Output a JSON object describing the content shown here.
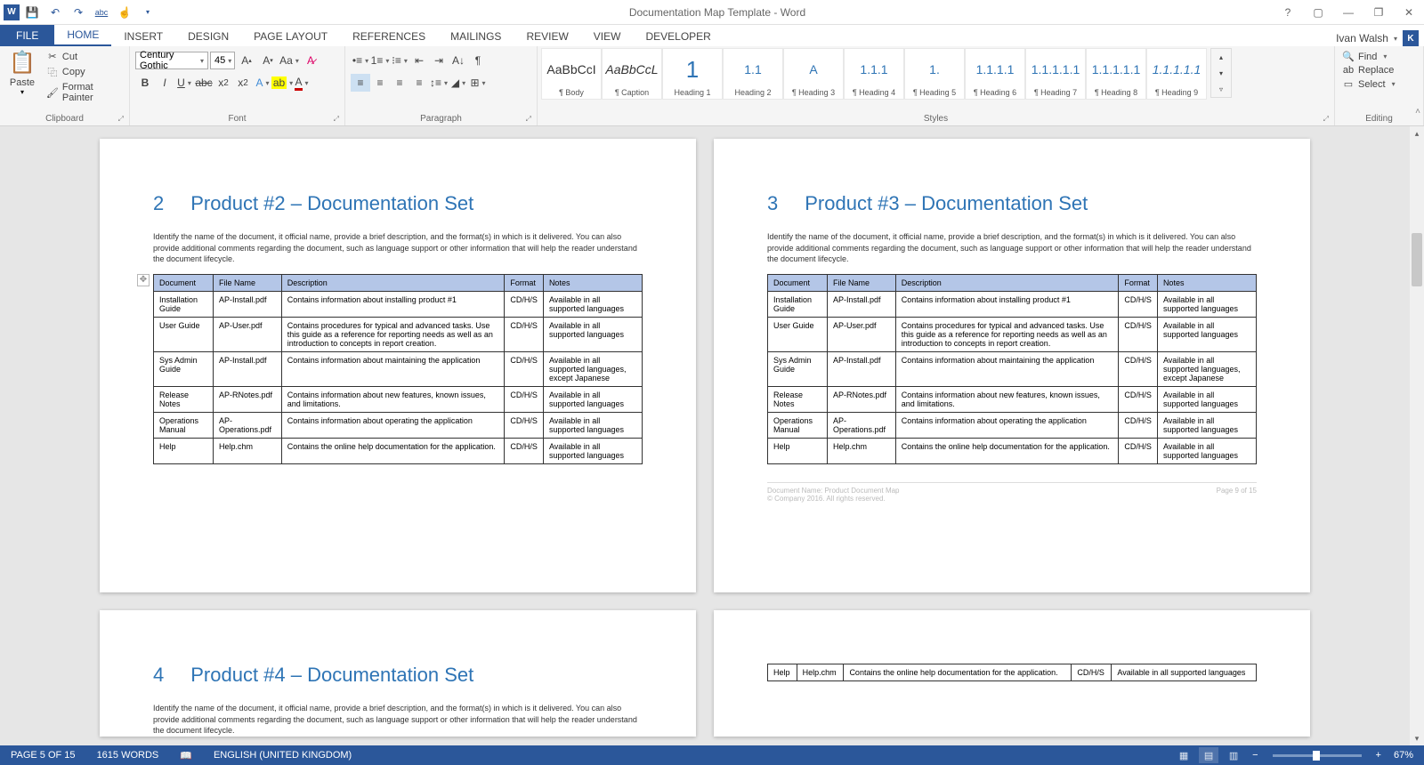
{
  "app": {
    "title": "Documentation Map Template - Word",
    "user": "Ivan Walsh",
    "user_initial": "K"
  },
  "qat": {
    "save": "💾",
    "undo": "↶",
    "redo": "↷",
    "spell": "abc",
    "touch": "☝"
  },
  "tabs": [
    "FILE",
    "HOME",
    "INSERT",
    "DESIGN",
    "PAGE LAYOUT",
    "REFERENCES",
    "MAILINGS",
    "REVIEW",
    "VIEW",
    "DEVELOPER"
  ],
  "clipboard": {
    "group": "Clipboard",
    "paste": "Paste",
    "cut": "Cut",
    "copy": "Copy",
    "painter": "Format Painter"
  },
  "font": {
    "group": "Font",
    "name": "Century Gothic",
    "size": "45"
  },
  "paragraph": {
    "group": "Paragraph"
  },
  "styles": {
    "group": "Styles",
    "items": [
      {
        "preview": "AaBbCcI",
        "name": "¶ Body",
        "heading": false
      },
      {
        "preview": "AaBbCcL",
        "name": "¶ Caption",
        "heading": false,
        "italic": true
      },
      {
        "preview": "1",
        "name": "Heading 1",
        "heading": true,
        "big": true
      },
      {
        "preview": "1.1",
        "name": "Heading 2",
        "heading": true
      },
      {
        "preview": "A",
        "name": "¶ Heading 3",
        "heading": true
      },
      {
        "preview": "1.1.1",
        "name": "¶ Heading 4",
        "heading": true
      },
      {
        "preview": "1.",
        "name": "¶ Heading 5",
        "heading": true
      },
      {
        "preview": "1.1.1.1",
        "name": "¶ Heading 6",
        "heading": true
      },
      {
        "preview": "1.1.1.1.1",
        "name": "¶ Heading 7",
        "heading": true
      },
      {
        "preview": "1.1.1.1.1",
        "name": "¶ Heading 8",
        "heading": true
      },
      {
        "preview": "1.1.1.1.1",
        "name": "¶ Heading 9",
        "heading": true,
        "italic": true
      }
    ]
  },
  "editing": {
    "group": "Editing",
    "find": "Find",
    "replace": "Replace",
    "select": "Select"
  },
  "document": {
    "intro": "Identify the name of the document, it official name, provide a brief description, and the format(s) in which is it delivered. You can also provide additional comments regarding the document, such as language support or other information that will help the reader understand the document lifecycle.",
    "columns": [
      "Document",
      "File Name",
      "Description",
      "Format",
      "Notes"
    ],
    "rows": [
      [
        "Installation Guide",
        "AP-Install.pdf",
        "Contains information about installing product #1",
        "CD/H/S",
        "Available in all supported languages"
      ],
      [
        "User Guide",
        "AP-User.pdf",
        "Contains procedures for typical and advanced tasks. Use this guide as a reference for reporting needs as well as an introduction to concepts in report creation.",
        "CD/H/S",
        "Available in all supported languages"
      ],
      [
        "Sys Admin Guide",
        "AP-Install.pdf",
        "Contains information about maintaining the application",
        "CD/H/S",
        "Available in all supported languages, except Japanese"
      ],
      [
        "Release Notes",
        "AP-RNotes.pdf",
        "Contains information about new features, known issues, and limitations.",
        "CD/H/S",
        "Available in all supported languages"
      ],
      [
        "Operations Manual",
        "AP-Operations.pdf",
        "Contains information about operating the application",
        "CD/H/S",
        "Available in all supported languages"
      ],
      [
        "Help",
        "Help.chm",
        "Contains the online help documentation for the application.",
        "CD/H/S",
        "Available in all supported languages"
      ]
    ],
    "sections": [
      {
        "num": "2",
        "title": "Product #2 – Documentation Set"
      },
      {
        "num": "3",
        "title": "Product #3 – Documentation Set"
      },
      {
        "num": "4",
        "title": "Product #4 – Documentation Set"
      }
    ],
    "footer_doc": "Document Name: Product Document Map",
    "footer_copy": "© Company 2016. All rights reserved.",
    "footer_page": "Page 9 of 15",
    "frag_row": [
      "Help",
      "Help.chm",
      "Contains the online help documentation for the application.",
      "CD/H/S",
      "Available in all supported languages"
    ]
  },
  "status": {
    "page": "PAGE 5 OF 15",
    "words": "1615 WORDS",
    "lang": "ENGLISH (UNITED KINGDOM)",
    "zoom": "67%"
  }
}
